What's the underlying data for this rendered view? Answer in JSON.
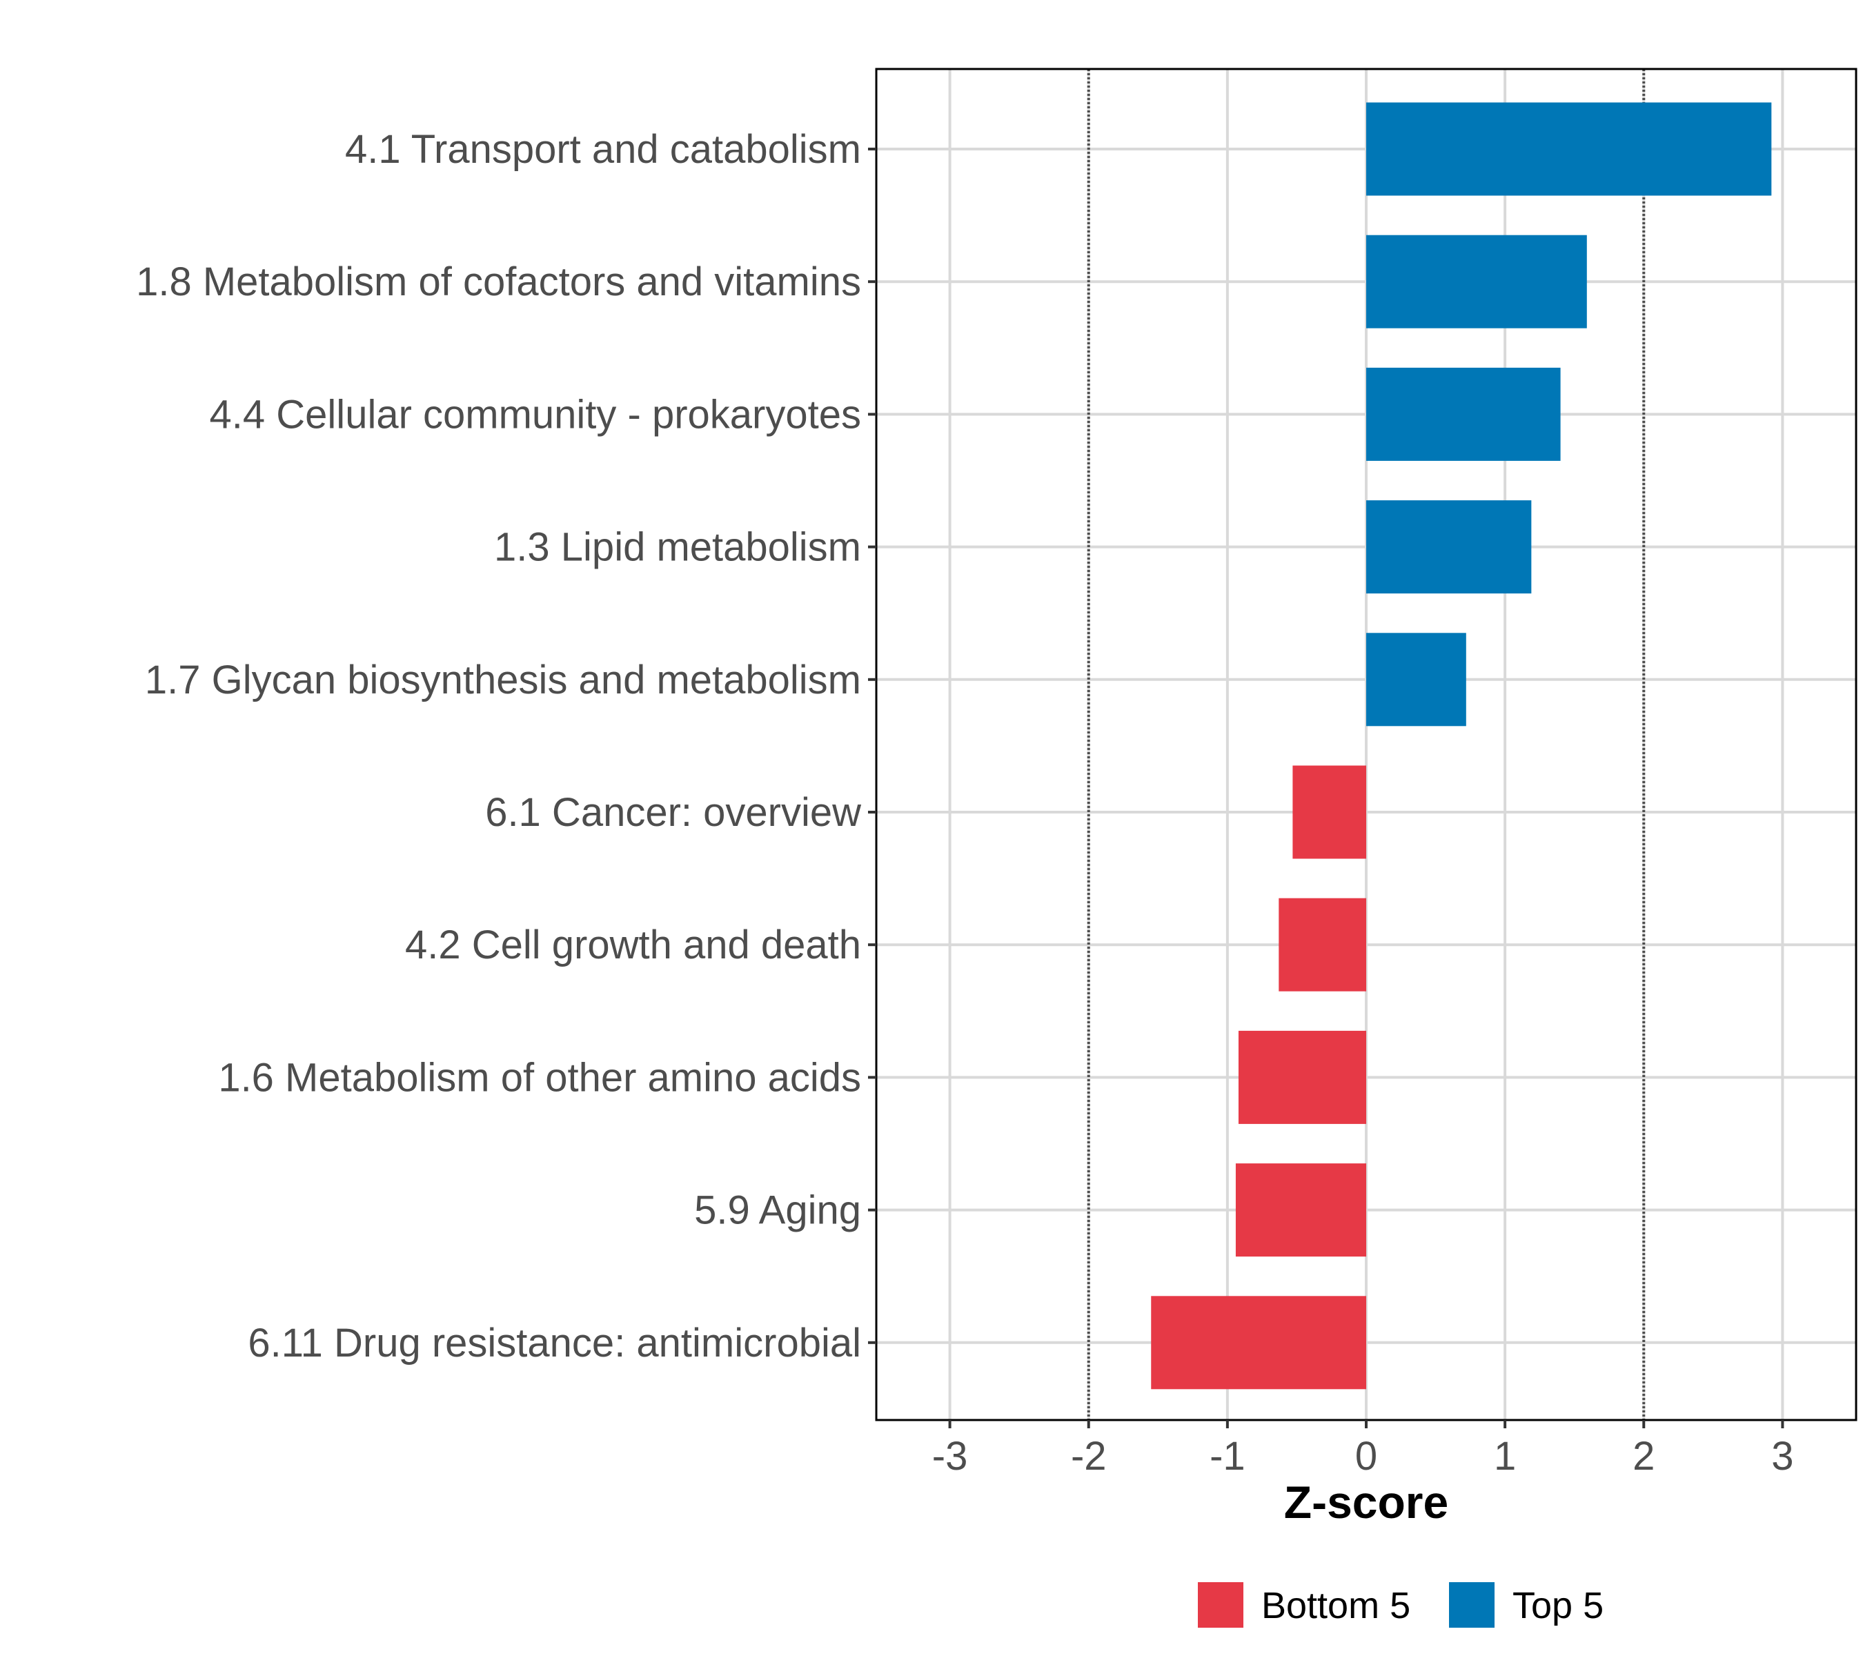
{
  "chart_data": {
    "type": "bar",
    "orientation": "horizontal",
    "title": "",
    "xlabel": "Z-score",
    "ylabel": "",
    "xlim": [
      -3.53,
      3.53
    ],
    "x_ticks": [
      -3,
      -2,
      -1,
      0,
      1,
      2,
      3
    ],
    "x_tick_labels": [
      "-3",
      "-2",
      "-1",
      "0",
      "1",
      "2",
      "3"
    ],
    "reference_lines": [
      -2,
      2
    ],
    "grid": true,
    "legend_position": "bottom",
    "categories": [
      "4.1 Transport and catabolism",
      "1.8 Metabolism of cofactors and vitamins",
      "4.4 Cellular community - prokaryotes",
      "1.3 Lipid metabolism",
      "1.7 Glycan biosynthesis and metabolism",
      "6.1 Cancer: overview",
      "4.2 Cell growth and death",
      "1.6 Metabolism of other amino acids",
      "5.9 Aging",
      "6.11 Drug resistance: antimicrobial"
    ],
    "values": [
      2.92,
      1.59,
      1.4,
      1.19,
      0.72,
      -0.53,
      -0.63,
      -0.92,
      -0.94,
      -1.55
    ],
    "groups": [
      "Top 5",
      "Top 5",
      "Top 5",
      "Top 5",
      "Top 5",
      "Bottom 5",
      "Bottom 5",
      "Bottom 5",
      "Bottom 5",
      "Bottom 5"
    ],
    "legend": [
      {
        "name": "Bottom 5",
        "color": "#e63946"
      },
      {
        "name": "Top 5",
        "color": "#0077b6"
      }
    ]
  }
}
